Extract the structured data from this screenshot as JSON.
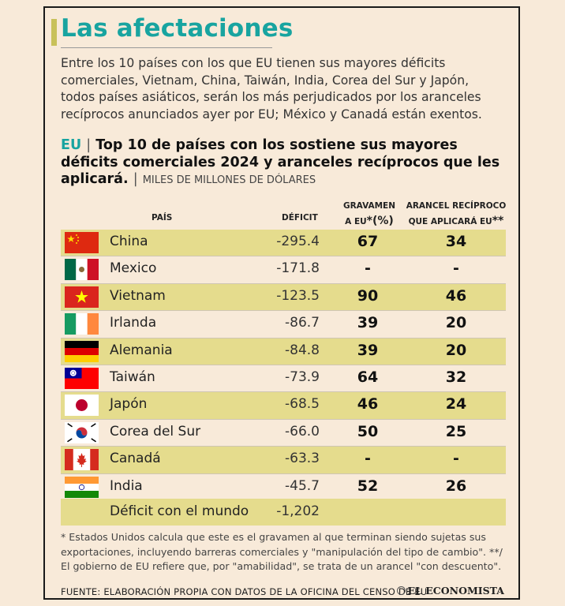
{
  "headline": "Las afectaciones",
  "intro": "Entre los 10 países con los que EU tienen sus mayores déficits comerciales, Vietnam, China, Taiwán, India, Corea del Sur y Japón, todos países asiáticos, serán los más perjudicados por los aranceles recíprocos anunciados ayer por EU; México y Canadá están exentos.",
  "subtitle": {
    "prefix": "EU",
    "separator": "|",
    "text": "Top 10 de países con los sostiene sus mayores déficits comerciales 2024 y aranceles recíprocos que les aplicará.",
    "units_separator": "|",
    "units": "MILES DE MILLONES DE DÓLARES"
  },
  "columns": {
    "pais": "PAÍS",
    "deficit": "DÉFICIT",
    "gravamen_line1": "GRAVAMEN",
    "gravamen_line2": "A EU",
    "gravamen_mark": "*(%)",
    "arancel_line1": "ARANCEL RECÍPROCO",
    "arancel_line2": "QUE APLICARÁ EU",
    "arancel_mark": "** (%)"
  },
  "rows": [
    {
      "country": "China",
      "deficit": "-295.4",
      "gravamen": "67",
      "arancel": "34",
      "flag": "china-flag"
    },
    {
      "country": "Mexico",
      "deficit": "-171.8",
      "gravamen": "-",
      "arancel": "-",
      "flag": "mexico-flag"
    },
    {
      "country": "Vietnam",
      "deficit": "-123.5",
      "gravamen": "90",
      "arancel": "46",
      "flag": "vietnam-flag"
    },
    {
      "country": "Irlanda",
      "deficit": "-86.7",
      "gravamen": "39",
      "arancel": "20",
      "flag": "ireland-flag"
    },
    {
      "country": "Alemania",
      "deficit": "-84.8",
      "gravamen": "39",
      "arancel": "20",
      "flag": "germany-flag"
    },
    {
      "country": "Taiwán",
      "deficit": "-73.9",
      "gravamen": "64",
      "arancel": "32",
      "flag": "taiwan-flag"
    },
    {
      "country": "Japón",
      "deficit": "-68.5",
      "gravamen": "46",
      "arancel": "24",
      "flag": "japan-flag"
    },
    {
      "country": "Corea del Sur",
      "deficit": "-66.0",
      "gravamen": "50",
      "arancel": "25",
      "flag": "south-korea-flag"
    },
    {
      "country": "Canadá",
      "deficit": "-63.3",
      "gravamen": "-",
      "arancel": "-",
      "flag": "canada-flag"
    },
    {
      "country": "India",
      "deficit": "-45.7",
      "gravamen": "52",
      "arancel": "26",
      "flag": "india-flag"
    }
  ],
  "total": {
    "label": "Déficit con el mundo",
    "value": "-1,202"
  },
  "footnote": "* Estados Unidos calcula que este es el gravamen al que terminan siendo sujetas sus exportaciones, incluyendo barreras comerciales y \"manipulación del tipo de cambio\". **/ El gobierno de EU refiere que, por \"amabilidad\", se trata de un arancel \"con descuento\".",
  "source": "FUENTE: ELABORACIÓN PROPIA CON DATOS DE LA OFICINA DEL CENSO DE EU",
  "brand": "EL ECONOMISTA",
  "colors": {
    "accent_teal": "#18a4a0",
    "row_highlight": "#e5dc8d",
    "background": "#f8ead9",
    "accent_bar": "#c8c15a"
  }
}
